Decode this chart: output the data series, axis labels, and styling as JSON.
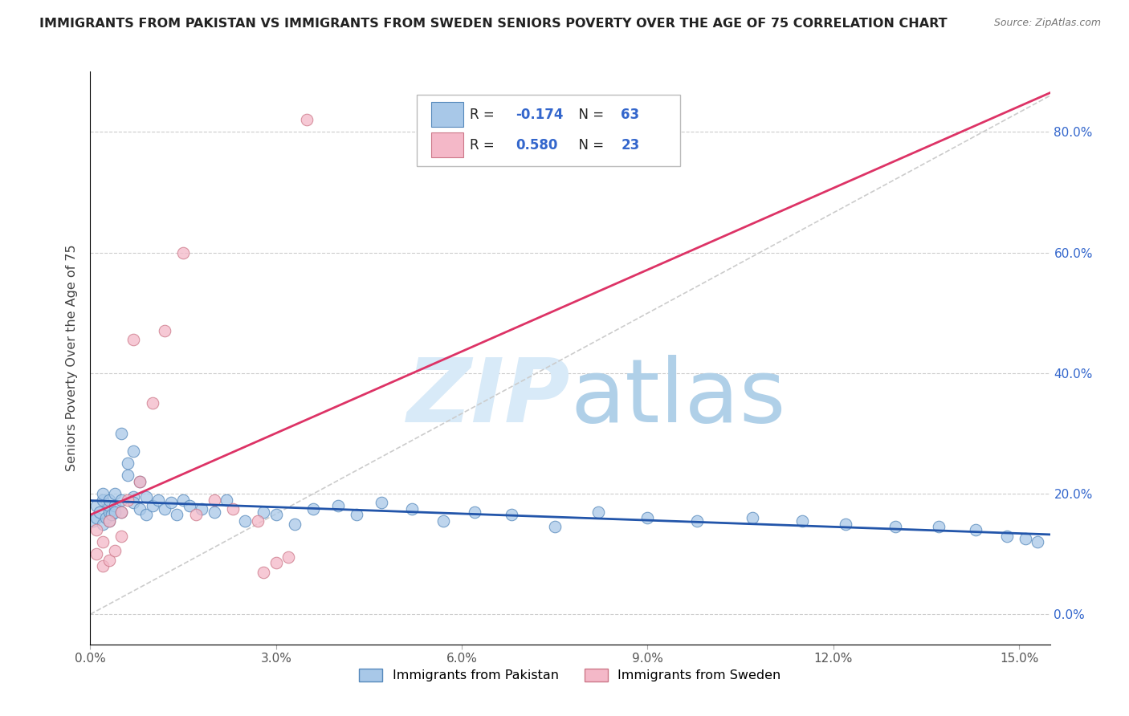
{
  "title": "IMMIGRANTS FROM PAKISTAN VS IMMIGRANTS FROM SWEDEN SENIORS POVERTY OVER THE AGE OF 75 CORRELATION CHART",
  "source": "Source: ZipAtlas.com",
  "ylabel": "Seniors Poverty Over the Age of 75",
  "xlim": [
    0.0,
    0.155
  ],
  "ylim": [
    -0.05,
    0.9
  ],
  "yticks": [
    0.0,
    0.2,
    0.4,
    0.6,
    0.8
  ],
  "ytick_labels_right": [
    "0.0%",
    "20.0%",
    "40.0%",
    "60.0%",
    "80.0%"
  ],
  "xtick_vals": [
    0.0,
    0.03,
    0.06,
    0.09,
    0.12,
    0.15
  ],
  "xtick_labels": [
    "0.0%",
    "3.0%",
    "6.0%",
    "9.0%",
    "12.0%",
    "15.0%"
  ],
  "pakistan_color": "#a8c8e8",
  "pakistan_edge": "#5588bb",
  "sweden_color": "#f4b8c8",
  "sweden_edge": "#cc7788",
  "pakistan_line_color": "#2255aa",
  "sweden_line_color": "#dd3366",
  "reference_line_color": "#cccccc",
  "grid_color": "#cccccc",
  "title_color": "#222222",
  "right_tick_color": "#3366cc",
  "r_value_color": "#3366cc",
  "watermark_color": "#d8eaf8",
  "pakistan_r": -0.174,
  "pakistan_n": 63,
  "sweden_r": 0.58,
  "sweden_n": 23,
  "pak_x": [
    0.0005,
    0.001,
    0.001,
    0.0015,
    0.002,
    0.002,
    0.002,
    0.0025,
    0.003,
    0.003,
    0.003,
    0.003,
    0.0035,
    0.004,
    0.004,
    0.004,
    0.005,
    0.005,
    0.005,
    0.006,
    0.006,
    0.007,
    0.007,
    0.007,
    0.008,
    0.008,
    0.009,
    0.009,
    0.01,
    0.011,
    0.012,
    0.013,
    0.014,
    0.015,
    0.016,
    0.018,
    0.02,
    0.022,
    0.025,
    0.028,
    0.03,
    0.033,
    0.036,
    0.04,
    0.043,
    0.047,
    0.052,
    0.057,
    0.062,
    0.068,
    0.075,
    0.082,
    0.09,
    0.098,
    0.107,
    0.115,
    0.122,
    0.13,
    0.137,
    0.143,
    0.148,
    0.151,
    0.153
  ],
  "pak_y": [
    0.155,
    0.18,
    0.16,
    0.17,
    0.19,
    0.15,
    0.2,
    0.16,
    0.17,
    0.18,
    0.155,
    0.19,
    0.165,
    0.18,
    0.17,
    0.2,
    0.3,
    0.19,
    0.17,
    0.23,
    0.25,
    0.27,
    0.195,
    0.185,
    0.22,
    0.175,
    0.165,
    0.195,
    0.18,
    0.19,
    0.175,
    0.185,
    0.165,
    0.19,
    0.18,
    0.175,
    0.17,
    0.19,
    0.155,
    0.17,
    0.165,
    0.15,
    0.175,
    0.18,
    0.165,
    0.185,
    0.175,
    0.155,
    0.17,
    0.165,
    0.145,
    0.17,
    0.16,
    0.155,
    0.16,
    0.155,
    0.15,
    0.145,
    0.145,
    0.14,
    0.13,
    0.125,
    0.12
  ],
  "swe_x": [
    0.001,
    0.001,
    0.002,
    0.002,
    0.003,
    0.003,
    0.004,
    0.005,
    0.005,
    0.006,
    0.007,
    0.008,
    0.01,
    0.012,
    0.015,
    0.017,
    0.02,
    0.023,
    0.027,
    0.028,
    0.03,
    0.032,
    0.035
  ],
  "swe_y": [
    0.14,
    0.1,
    0.08,
    0.12,
    0.155,
    0.09,
    0.105,
    0.13,
    0.17,
    0.19,
    0.455,
    0.22,
    0.35,
    0.47,
    0.6,
    0.165,
    0.19,
    0.175,
    0.155,
    0.07,
    0.085,
    0.095,
    0.82
  ]
}
